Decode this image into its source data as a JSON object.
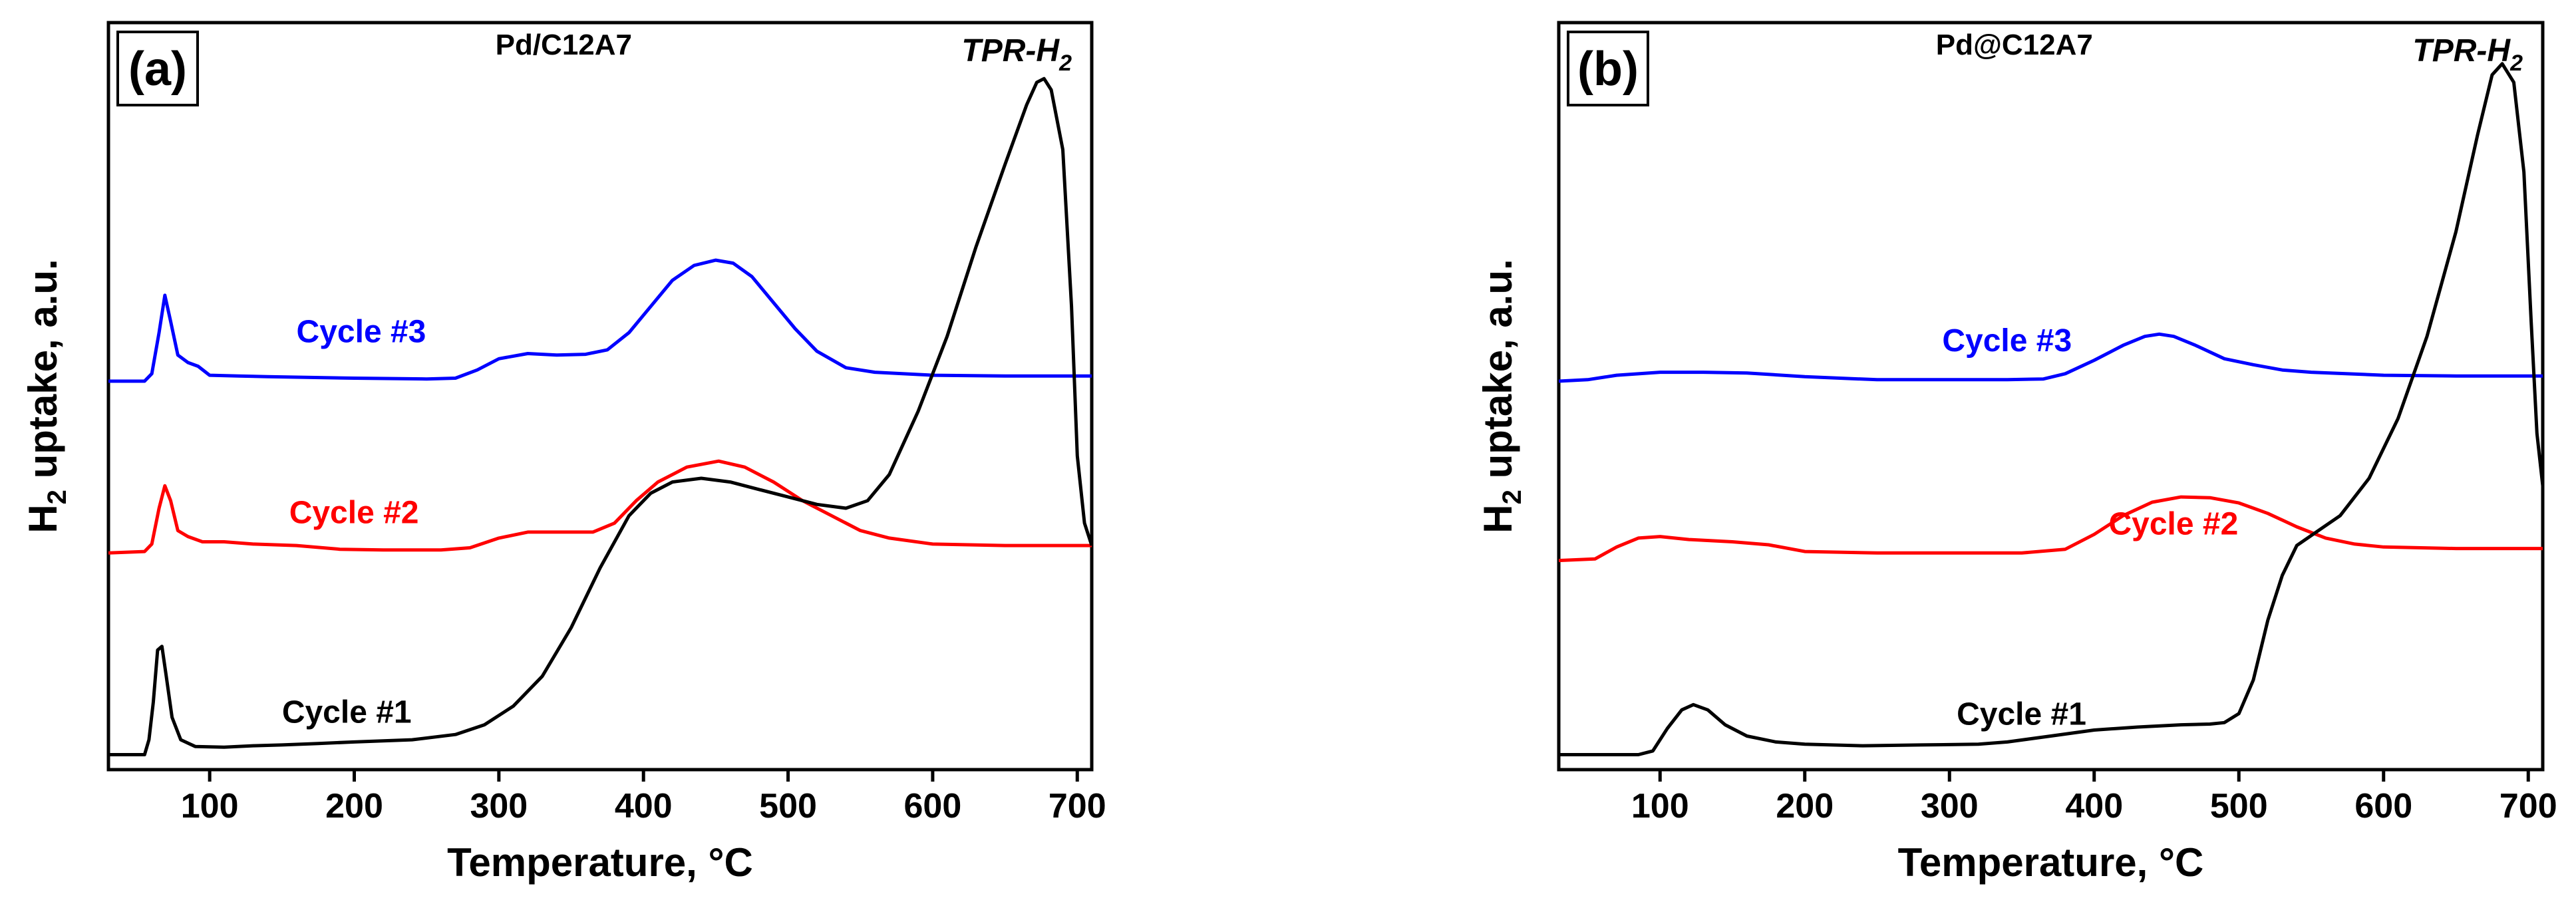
{
  "chart_data": [
    {
      "type": "line",
      "panel_label": "(a)",
      "title": "Pd/C12A7",
      "method_label": "TPR-H",
      "method_sub": "2",
      "xlabel": "Temperature, °C",
      "ylabel": "H",
      "ylabel_sub": "2",
      "ylabel_rest": " uptake, a.u.",
      "xlim": [
        30,
        710
      ],
      "ylim": [
        0,
        1
      ],
      "xticks": [
        100,
        200,
        300,
        400,
        500,
        600,
        700
      ],
      "y_ticks_shown": false,
      "series": [
        {
          "name": "Cycle #3",
          "color": "#0000ff",
          "label_at": [
            160,
            0.572
          ],
          "points": [
            [
              30,
              0.52
            ],
            [
              55,
              0.52
            ],
            [
              60,
              0.53
            ],
            [
              65,
              0.585
            ],
            [
              69,
              0.635
            ],
            [
              73,
              0.6
            ],
            [
              78,
              0.555
            ],
            [
              85,
              0.545
            ],
            [
              92,
              0.54
            ],
            [
              100,
              0.528
            ],
            [
              120,
              0.527
            ],
            [
              140,
              0.526
            ],
            [
              200,
              0.524
            ],
            [
              250,
              0.523
            ],
            [
              270,
              0.524
            ],
            [
              285,
              0.535
            ],
            [
              300,
              0.55
            ],
            [
              320,
              0.557
            ],
            [
              340,
              0.555
            ],
            [
              360,
              0.556
            ],
            [
              375,
              0.562
            ],
            [
              390,
              0.585
            ],
            [
              405,
              0.62
            ],
            [
              420,
              0.655
            ],
            [
              435,
              0.675
            ],
            [
              450,
              0.682
            ],
            [
              462,
              0.678
            ],
            [
              475,
              0.66
            ],
            [
              490,
              0.625
            ],
            [
              505,
              0.59
            ],
            [
              520,
              0.56
            ],
            [
              540,
              0.538
            ],
            [
              560,
              0.532
            ],
            [
              600,
              0.528
            ],
            [
              650,
              0.527
            ],
            [
              700,
              0.527
            ],
            [
              710,
              0.527
            ]
          ]
        },
        {
          "name": "Cycle #2",
          "color": "#ff0000",
          "label_at": [
            155,
            0.33
          ],
          "points": [
            [
              30,
              0.29
            ],
            [
              55,
              0.292
            ],
            [
              60,
              0.302
            ],
            [
              65,
              0.35
            ],
            [
              69,
              0.38
            ],
            [
              73,
              0.36
            ],
            [
              78,
              0.32
            ],
            [
              85,
              0.312
            ],
            [
              95,
              0.305
            ],
            [
              110,
              0.305
            ],
            [
              130,
              0.302
            ],
            [
              160,
              0.3
            ],
            [
              190,
              0.295
            ],
            [
              220,
              0.294
            ],
            [
              260,
              0.294
            ],
            [
              280,
              0.297
            ],
            [
              300,
              0.31
            ],
            [
              320,
              0.318
            ],
            [
              340,
              0.318
            ],
            [
              365,
              0.318
            ],
            [
              380,
              0.33
            ],
            [
              395,
              0.36
            ],
            [
              410,
              0.385
            ],
            [
              430,
              0.405
            ],
            [
              452,
              0.413
            ],
            [
              470,
              0.405
            ],
            [
              490,
              0.385
            ],
            [
              510,
              0.36
            ],
            [
              530,
              0.34
            ],
            [
              550,
              0.32
            ],
            [
              570,
              0.31
            ],
            [
              600,
              0.302
            ],
            [
              650,
              0.3
            ],
            [
              700,
              0.3
            ],
            [
              710,
              0.3
            ]
          ]
        },
        {
          "name": "Cycle #1",
          "color": "#000000",
          "label_at": [
            150,
            0.063
          ],
          "points": [
            [
              30,
              0.02
            ],
            [
              55,
              0.02
            ],
            [
              58,
              0.04
            ],
            [
              61,
              0.09
            ],
            [
              64,
              0.16
            ],
            [
              67,
              0.165
            ],
            [
              70,
              0.125
            ],
            [
              74,
              0.07
            ],
            [
              80,
              0.04
            ],
            [
              90,
              0.031
            ],
            [
              110,
              0.03
            ],
            [
              130,
              0.032
            ],
            [
              150,
              0.033
            ],
            [
              175,
              0.035
            ],
            [
              200,
              0.037
            ],
            [
              240,
              0.04
            ],
            [
              270,
              0.047
            ],
            [
              290,
              0.06
            ],
            [
              310,
              0.085
            ],
            [
              330,
              0.125
            ],
            [
              350,
              0.19
            ],
            [
              370,
              0.27
            ],
            [
              390,
              0.34
            ],
            [
              405,
              0.37
            ],
            [
              420,
              0.385
            ],
            [
              440,
              0.39
            ],
            [
              460,
              0.385
            ],
            [
              480,
              0.375
            ],
            [
              500,
              0.365
            ],
            [
              520,
              0.355
            ],
            [
              540,
              0.35
            ],
            [
              555,
              0.36
            ],
            [
              570,
              0.395
            ],
            [
              590,
              0.48
            ],
            [
              610,
              0.58
            ],
            [
              630,
              0.7
            ],
            [
              650,
              0.81
            ],
            [
              665,
              0.89
            ],
            [
              672,
              0.92
            ],
            [
              677,
              0.925
            ],
            [
              682,
              0.91
            ],
            [
              690,
              0.83
            ],
            [
              696,
              0.62
            ],
            [
              700,
              0.42
            ],
            [
              705,
              0.33
            ],
            [
              710,
              0.3
            ]
          ]
        }
      ]
    },
    {
      "type": "line",
      "panel_label": "(b)",
      "title": "Pd@C12A7",
      "method_label": "TPR-H",
      "method_sub": "2",
      "xlabel": "Temperature, °C",
      "ylabel": "H",
      "ylabel_sub": "2",
      "ylabel_rest": " uptake, a.u.",
      "xlim": [
        30,
        710
      ],
      "ylim": [
        0,
        1
      ],
      "xticks": [
        100,
        200,
        300,
        400,
        500,
        600,
        700
      ],
      "y_ticks_shown": false,
      "series": [
        {
          "name": "Cycle #3",
          "color": "#0000ff",
          "label_at": [
            295,
            0.56
          ],
          "points": [
            [
              30,
              0.52
            ],
            [
              50,
              0.522
            ],
            [
              70,
              0.528
            ],
            [
              100,
              0.532
            ],
            [
              130,
              0.532
            ],
            [
              160,
              0.531
            ],
            [
              200,
              0.526
            ],
            [
              250,
              0.522
            ],
            [
              300,
              0.522
            ],
            [
              340,
              0.522
            ],
            [
              365,
              0.523
            ],
            [
              380,
              0.53
            ],
            [
              400,
              0.548
            ],
            [
              420,
              0.568
            ],
            [
              435,
              0.58
            ],
            [
              445,
              0.583
            ],
            [
              455,
              0.58
            ],
            [
              470,
              0.568
            ],
            [
              490,
              0.55
            ],
            [
              510,
              0.542
            ],
            [
              530,
              0.535
            ],
            [
              550,
              0.532
            ],
            [
              600,
              0.528
            ],
            [
              650,
              0.527
            ],
            [
              700,
              0.527
            ],
            [
              710,
              0.527
            ]
          ]
        },
        {
          "name": "Cycle #2",
          "color": "#ff0000",
          "label_at": [
            410,
            0.315
          ],
          "points": [
            [
              30,
              0.28
            ],
            [
              55,
              0.282
            ],
            [
              70,
              0.298
            ],
            [
              85,
              0.31
            ],
            [
              100,
              0.312
            ],
            [
              120,
              0.308
            ],
            [
              150,
              0.305
            ],
            [
              175,
              0.301
            ],
            [
              200,
              0.292
            ],
            [
              250,
              0.29
            ],
            [
              300,
              0.29
            ],
            [
              350,
              0.29
            ],
            [
              380,
              0.295
            ],
            [
              400,
              0.315
            ],
            [
              420,
              0.34
            ],
            [
              440,
              0.358
            ],
            [
              460,
              0.365
            ],
            [
              480,
              0.364
            ],
            [
              500,
              0.357
            ],
            [
              520,
              0.343
            ],
            [
              540,
              0.325
            ],
            [
              560,
              0.31
            ],
            [
              580,
              0.302
            ],
            [
              600,
              0.298
            ],
            [
              650,
              0.296
            ],
            [
              700,
              0.296
            ],
            [
              710,
              0.296
            ]
          ]
        },
        {
          "name": "Cycle #1",
          "color": "#000000",
          "label_at": [
            305,
            0.06
          ],
          "points": [
            [
              30,
              0.02
            ],
            [
              85,
              0.02
            ],
            [
              95,
              0.025
            ],
            [
              105,
              0.055
            ],
            [
              115,
              0.08
            ],
            [
              123,
              0.087
            ],
            [
              133,
              0.08
            ],
            [
              145,
              0.06
            ],
            [
              160,
              0.045
            ],
            [
              180,
              0.037
            ],
            [
              200,
              0.034
            ],
            [
              240,
              0.032
            ],
            [
              280,
              0.033
            ],
            [
              320,
              0.034
            ],
            [
              340,
              0.037
            ],
            [
              370,
              0.045
            ],
            [
              400,
              0.053
            ],
            [
              430,
              0.057
            ],
            [
              460,
              0.06
            ],
            [
              480,
              0.061
            ],
            [
              490,
              0.063
            ],
            [
              500,
              0.075
            ],
            [
              510,
              0.12
            ],
            [
              520,
              0.2
            ],
            [
              530,
              0.26
            ],
            [
              540,
              0.3
            ],
            [
              555,
              0.32
            ],
            [
              570,
              0.34
            ],
            [
              590,
              0.39
            ],
            [
              610,
              0.47
            ],
            [
              630,
              0.58
            ],
            [
              650,
              0.72
            ],
            [
              665,
              0.85
            ],
            [
              675,
              0.93
            ],
            [
              682,
              0.945
            ],
            [
              690,
              0.92
            ],
            [
              697,
              0.8
            ],
            [
              702,
              0.6
            ],
            [
              706,
              0.45
            ],
            [
              710,
              0.38
            ]
          ]
        }
      ]
    }
  ]
}
